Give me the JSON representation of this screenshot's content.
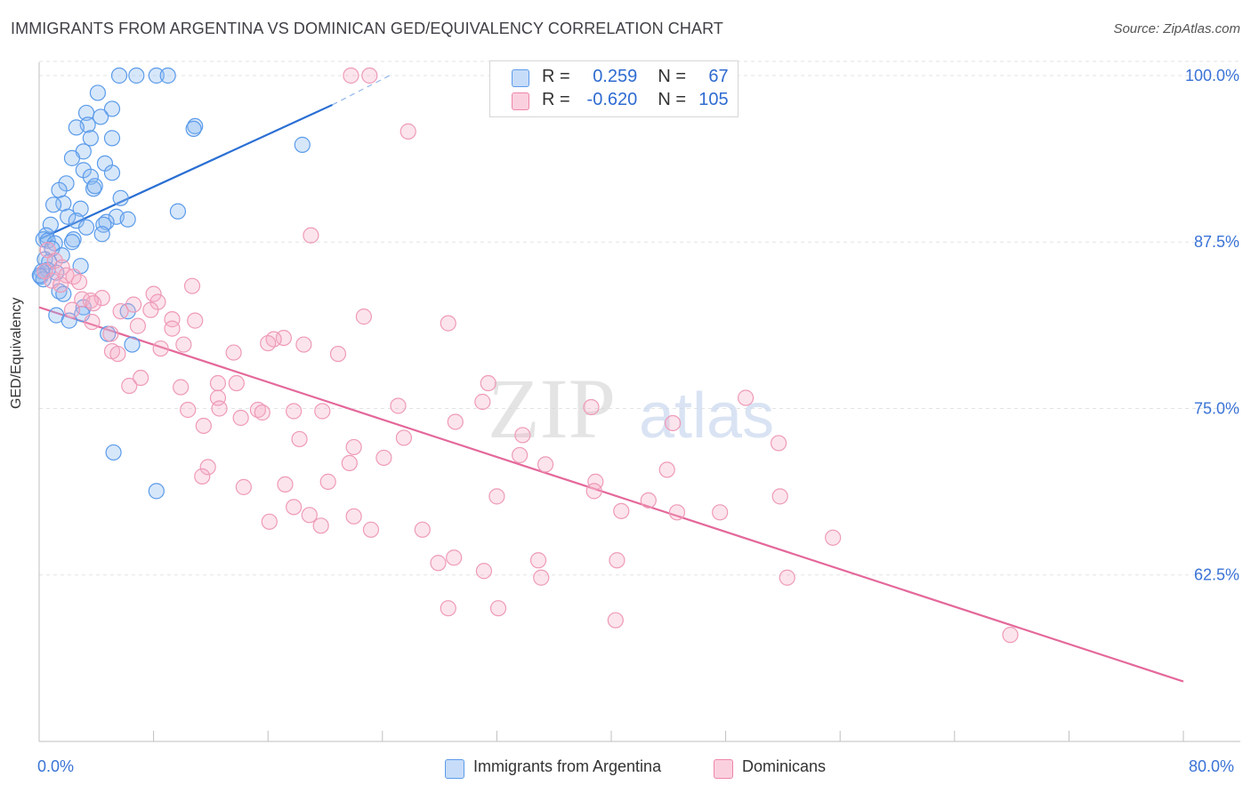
{
  "header": {
    "title": "IMMIGRANTS FROM ARGENTINA VS DOMINICAN GED/EQUIVALENCY CORRELATION CHART",
    "source": "Source: ZipAtlas.com"
  },
  "legend": {
    "r_label": "R =",
    "n_label": "N =",
    "rows": [
      {
        "r": "0.259",
        "n": "67",
        "color": "#5b9bea"
      },
      {
        "r": "-0.620",
        "n": "105",
        "color": "#ee86a8"
      }
    ]
  },
  "watermark": {
    "zip": "ZIP",
    "atlas": "atlas"
  },
  "bottom_legend": {
    "items": [
      {
        "label": "Immigrants from Argentina",
        "color": "#5b9bea"
      },
      {
        "label": "Dominicans",
        "color": "#ee86a8"
      }
    ]
  },
  "chart_data": {
    "type": "scatter",
    "xlabel": "",
    "ylabel": "GED/Equivalency",
    "xlim": [
      0,
      80
    ],
    "ylim": [
      50,
      101
    ],
    "x_tick_labels": [
      "0.0%",
      "80.0%"
    ],
    "y_ticks": [
      62.5,
      75.0,
      87.5,
      100.0
    ],
    "y_tick_labels": [
      "62.5%",
      "75.0%",
      "87.5%",
      "100.0%"
    ],
    "grid": true,
    "legend_position": "top-center",
    "series": [
      {
        "name": "Immigrants from Argentina",
        "color": "#5b9bea",
        "trend": {
          "x0": 0,
          "y0": 87.7,
          "x1": 20.5,
          "y1": 97.8,
          "dashed_to_x": 24.5,
          "dashed_to_y": 100.0
        },
        "points": [
          [
            5.6,
            100.0
          ],
          [
            6.8,
            100.0
          ],
          [
            8.2,
            100.0
          ],
          [
            9.0,
            100.0
          ],
          [
            4.1,
            98.7
          ],
          [
            5.1,
            97.5
          ],
          [
            3.3,
            97.2
          ],
          [
            4.3,
            96.9
          ],
          [
            3.4,
            96.3
          ],
          [
            2.6,
            96.1
          ],
          [
            10.9,
            96.2
          ],
          [
            10.8,
            96.0
          ],
          [
            3.6,
            95.3
          ],
          [
            5.1,
            95.3
          ],
          [
            18.4,
            94.8
          ],
          [
            3.1,
            94.3
          ],
          [
            2.3,
            93.8
          ],
          [
            4.6,
            93.4
          ],
          [
            3.1,
            92.9
          ],
          [
            5.1,
            92.7
          ],
          [
            3.6,
            92.4
          ],
          [
            1.9,
            91.9
          ],
          [
            3.8,
            91.5
          ],
          [
            1.4,
            91.4
          ],
          [
            3.9,
            91.7
          ],
          [
            5.7,
            90.8
          ],
          [
            1.7,
            90.4
          ],
          [
            1.0,
            90.3
          ],
          [
            2.9,
            90.0
          ],
          [
            9.7,
            89.8
          ],
          [
            2.0,
            89.4
          ],
          [
            5.4,
            89.4
          ],
          [
            6.2,
            89.2
          ],
          [
            2.6,
            89.1
          ],
          [
            4.7,
            89.0
          ],
          [
            4.5,
            88.8
          ],
          [
            0.8,
            88.8
          ],
          [
            3.3,
            88.6
          ],
          [
            4.4,
            88.1
          ],
          [
            0.5,
            88.0
          ],
          [
            0.3,
            87.7
          ],
          [
            0.6,
            87.6
          ],
          [
            1.1,
            87.4
          ],
          [
            2.4,
            87.7
          ],
          [
            2.3,
            87.5
          ],
          [
            0.9,
            87.0
          ],
          [
            1.6,
            86.5
          ],
          [
            0.4,
            86.2
          ],
          [
            0.7,
            86.0
          ],
          [
            2.9,
            85.7
          ],
          [
            0.6,
            85.4
          ],
          [
            1.2,
            85.2
          ],
          [
            0.2,
            85.3
          ],
          [
            0.1,
            84.9
          ],
          [
            0.3,
            84.7
          ],
          [
            1.4,
            83.8
          ],
          [
            1.7,
            83.6
          ],
          [
            3.1,
            82.6
          ],
          [
            6.2,
            82.3
          ],
          [
            3.0,
            82.1
          ],
          [
            1.2,
            82.0
          ],
          [
            2.1,
            81.6
          ],
          [
            4.8,
            80.6
          ],
          [
            6.5,
            79.8
          ],
          [
            5.2,
            71.7
          ],
          [
            8.2,
            68.8
          ],
          [
            0.05,
            85.0
          ]
        ]
      },
      {
        "name": "Dominicans",
        "color": "#ee86a8",
        "trend": {
          "x0": 0,
          "y0": 82.6,
          "x1": 80,
          "y1": 54.5
        },
        "points": [
          [
            21.8,
            100.0
          ],
          [
            23.1,
            100.0
          ],
          [
            25.8,
            95.8
          ],
          [
            19.0,
            88.0
          ],
          [
            0.6,
            86.9
          ],
          [
            1.1,
            86.1
          ],
          [
            1.6,
            85.6
          ],
          [
            0.4,
            85.3
          ],
          [
            1.9,
            85.0
          ],
          [
            2.4,
            84.9
          ],
          [
            0.9,
            84.6
          ],
          [
            2.8,
            84.5
          ],
          [
            10.7,
            84.2
          ],
          [
            8.0,
            83.6
          ],
          [
            4.4,
            83.3
          ],
          [
            3.0,
            83.2
          ],
          [
            3.6,
            83.1
          ],
          [
            8.3,
            83.0
          ],
          [
            3.8,
            82.9
          ],
          [
            6.6,
            82.8
          ],
          [
            7.8,
            82.4
          ],
          [
            5.7,
            82.3
          ],
          [
            22.7,
            81.9
          ],
          [
            9.3,
            81.7
          ],
          [
            10.9,
            81.6
          ],
          [
            3.7,
            81.5
          ],
          [
            28.6,
            81.4
          ],
          [
            6.9,
            81.2
          ],
          [
            9.3,
            81.0
          ],
          [
            5.0,
            80.6
          ],
          [
            17.1,
            80.3
          ],
          [
            16.4,
            80.2
          ],
          [
            16.0,
            79.9
          ],
          [
            18.5,
            79.8
          ],
          [
            10.1,
            79.8
          ],
          [
            8.5,
            79.5
          ],
          [
            5.1,
            79.3
          ],
          [
            5.5,
            79.1
          ],
          [
            13.6,
            79.2
          ],
          [
            20.9,
            79.1
          ],
          [
            7.1,
            77.3
          ],
          [
            31.4,
            76.9
          ],
          [
            6.3,
            76.7
          ],
          [
            9.9,
            76.6
          ],
          [
            13.8,
            76.9
          ],
          [
            12.5,
            76.9
          ],
          [
            49.4,
            75.8
          ],
          [
            31.0,
            75.5
          ],
          [
            12.5,
            75.8
          ],
          [
            12.6,
            75.0
          ],
          [
            25.1,
            75.2
          ],
          [
            38.6,
            75.1
          ],
          [
            10.4,
            74.9
          ],
          [
            15.3,
            74.9
          ],
          [
            15.6,
            74.7
          ],
          [
            17.8,
            74.8
          ],
          [
            19.8,
            74.8
          ],
          [
            14.1,
            74.3
          ],
          [
            29.1,
            74.0
          ],
          [
            44.3,
            73.9
          ],
          [
            11.5,
            73.7
          ],
          [
            33.8,
            73.0
          ],
          [
            25.5,
            72.8
          ],
          [
            18.2,
            72.7
          ],
          [
            51.7,
            72.4
          ],
          [
            22.0,
            72.1
          ],
          [
            24.1,
            71.3
          ],
          [
            33.6,
            71.5
          ],
          [
            35.4,
            70.8
          ],
          [
            21.7,
            70.9
          ],
          [
            11.8,
            70.6
          ],
          [
            43.9,
            70.4
          ],
          [
            11.4,
            69.9
          ],
          [
            20.2,
            69.5
          ],
          [
            17.2,
            69.3
          ],
          [
            14.3,
            69.1
          ],
          [
            38.9,
            69.5
          ],
          [
            38.8,
            68.8
          ],
          [
            51.8,
            68.4
          ],
          [
            32.0,
            68.4
          ],
          [
            42.6,
            68.1
          ],
          [
            17.8,
            67.6
          ],
          [
            40.7,
            67.3
          ],
          [
            47.6,
            67.2
          ],
          [
            44.6,
            67.2
          ],
          [
            18.9,
            67.0
          ],
          [
            22.0,
            66.9
          ],
          [
            16.1,
            66.5
          ],
          [
            19.7,
            66.2
          ],
          [
            23.2,
            65.9
          ],
          [
            26.8,
            65.9
          ],
          [
            55.5,
            65.3
          ],
          [
            29.0,
            63.8
          ],
          [
            27.9,
            63.4
          ],
          [
            34.9,
            63.6
          ],
          [
            40.4,
            63.6
          ],
          [
            31.1,
            62.8
          ],
          [
            35.1,
            62.3
          ],
          [
            52.3,
            62.3
          ],
          [
            28.6,
            60.0
          ],
          [
            32.1,
            60.0
          ],
          [
            40.3,
            59.1
          ],
          [
            67.9,
            58.0
          ],
          [
            1.5,
            84.3
          ],
          [
            2.3,
            82.4
          ]
        ]
      }
    ]
  }
}
